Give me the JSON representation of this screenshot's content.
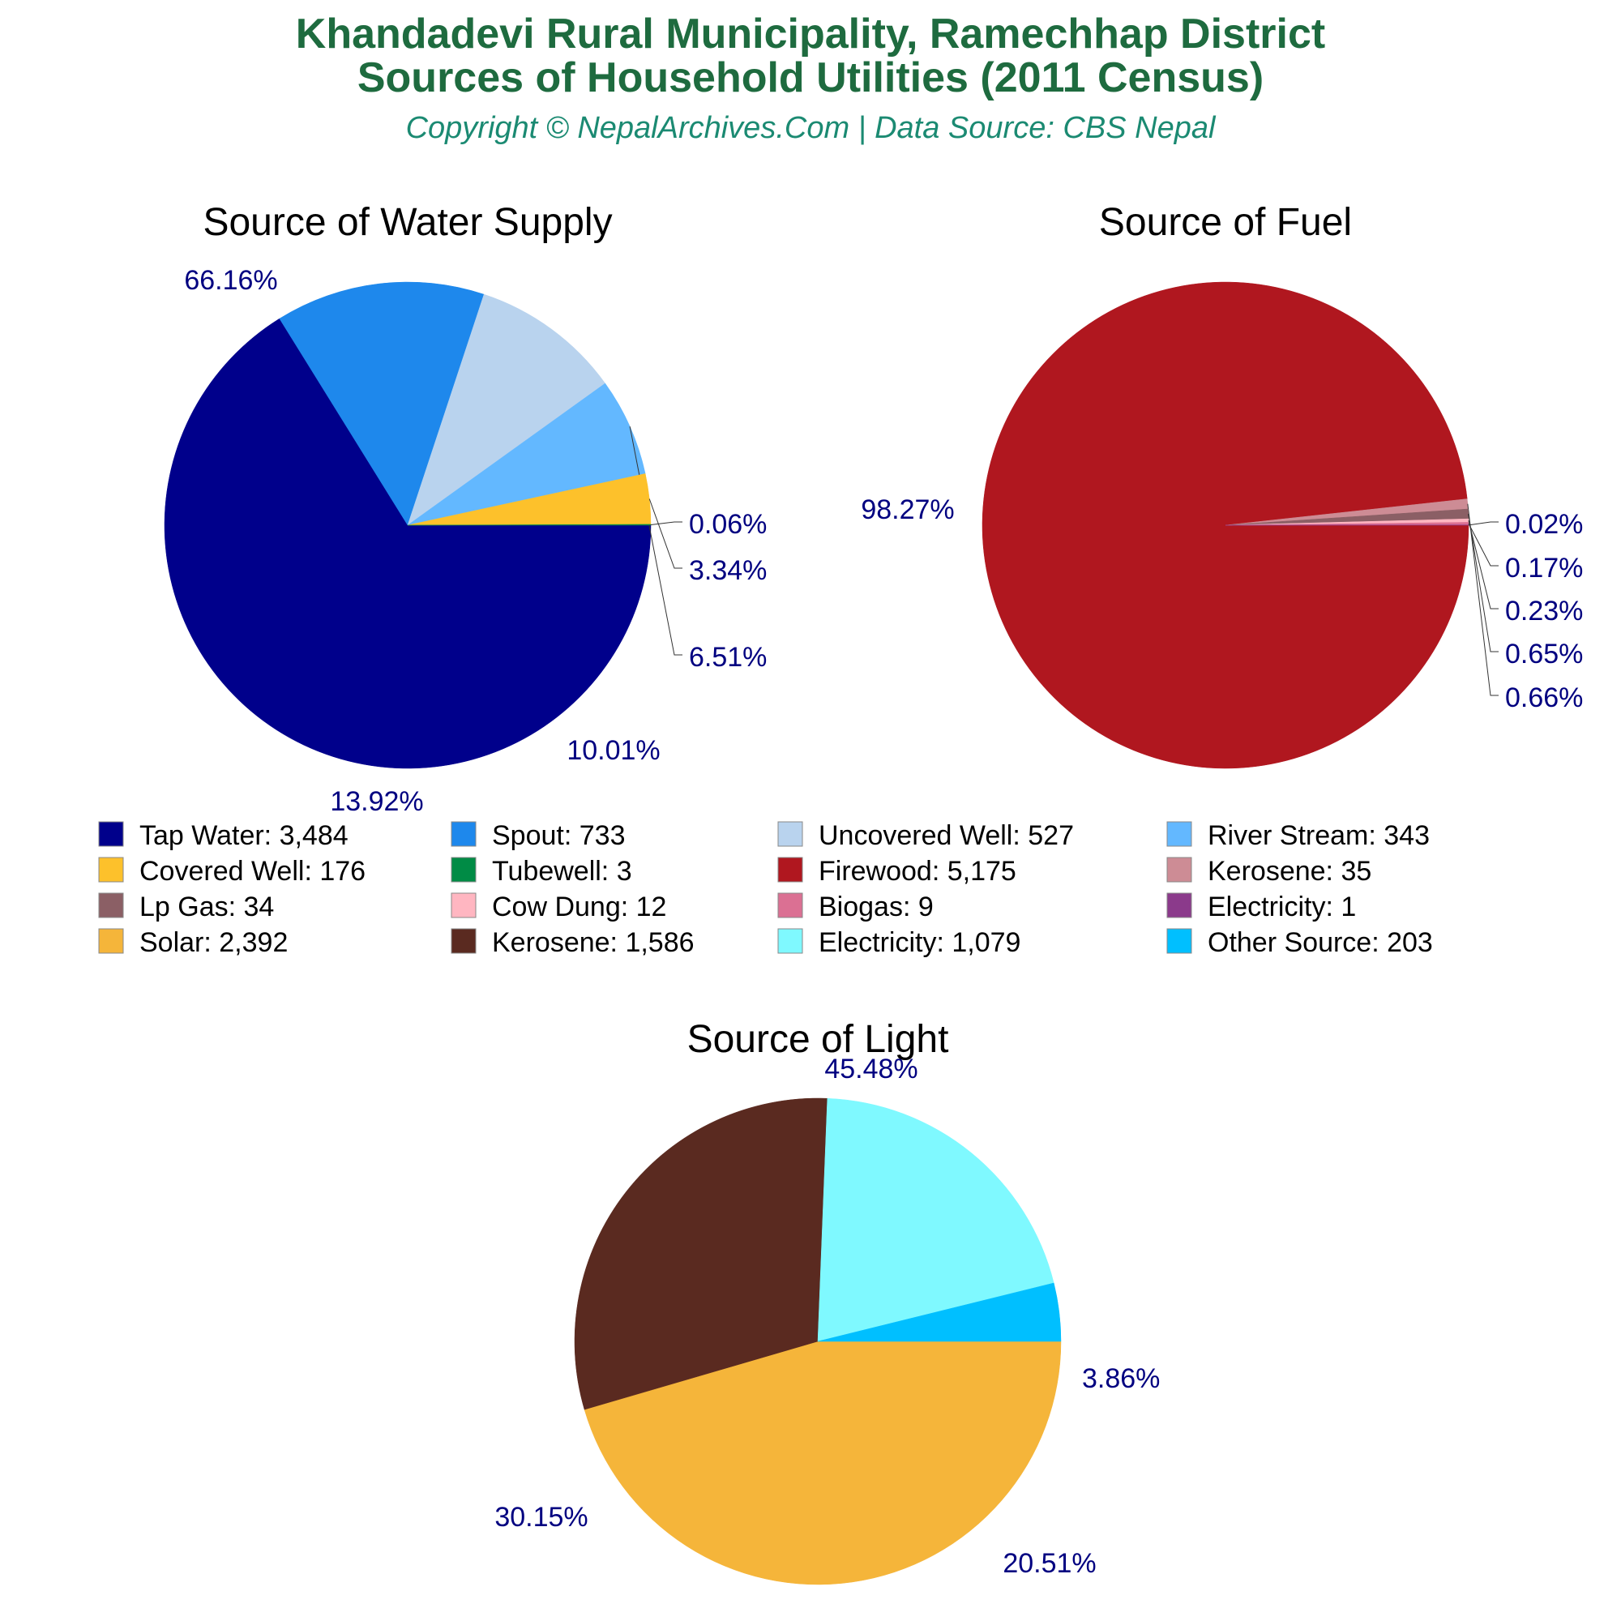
{
  "header": {
    "title_line1": "Khandadevi Rural Municipality, Ramechhap District",
    "title_line2": "Sources of Household Utilities (2011 Census)",
    "subtitle": "Copyright © NepalArchives.Com | Data Source: CBS Nepal"
  },
  "chart_data": [
    {
      "type": "pie",
      "title": "Source of Water Supply",
      "start_angle_deg": 0,
      "direction": "clockwise",
      "slices": [
        {
          "label": "Tap Water",
          "value": 3484,
          "percent": "66.16%",
          "color": "#00008b"
        },
        {
          "label": "Spout",
          "value": 733,
          "percent": "13.92%",
          "color": "#1e88ec"
        },
        {
          "label": "Uncovered Well",
          "value": 527,
          "percent": "10.01%",
          "color": "#b9d3ee"
        },
        {
          "label": "River Stream",
          "value": 343,
          "percent": "6.51%",
          "color": "#63b8ff"
        },
        {
          "label": "Covered Well",
          "value": 176,
          "percent": "3.34%",
          "color": "#fdc12b"
        },
        {
          "label": "Tubewell",
          "value": 3,
          "percent": "0.06%",
          "color": "#008b45"
        }
      ]
    },
    {
      "type": "pie",
      "title": "Source of Fuel",
      "start_angle_deg": 0,
      "direction": "clockwise",
      "slices": [
        {
          "label": "Firewood",
          "value": 5175,
          "percent": "98.27%",
          "color": "#b0171f"
        },
        {
          "label": "Kerosene",
          "value": 35,
          "percent": "0.66%",
          "color": "#cd8c95"
        },
        {
          "label": "Lp Gas",
          "value": 34,
          "percent": "0.65%",
          "color": "#8b5f65"
        },
        {
          "label": "Cow Dung",
          "value": 12,
          "percent": "0.23%",
          "color": "#ffb6c1"
        },
        {
          "label": "Biogas",
          "value": 9,
          "percent": "0.17%",
          "color": "#db7093"
        },
        {
          "label": "Electricity",
          "value": 1,
          "percent": "0.02%",
          "color": "#8b3a8b"
        }
      ]
    },
    {
      "type": "pie",
      "title": "Source of Light",
      "start_angle_deg": 0,
      "direction": "clockwise",
      "slices": [
        {
          "label": "Solar",
          "value": 2392,
          "percent": "45.48%",
          "color": "#f5b53a"
        },
        {
          "label": "Kerosene",
          "value": 1586,
          "percent": "30.15%",
          "color": "#5a2a20"
        },
        {
          "label": "Electricity",
          "value": 1079,
          "percent": "20.51%",
          "color": "#7ff9ff"
        },
        {
          "label": "Other Source",
          "value": 203,
          "percent": "3.86%",
          "color": "#00bfff"
        }
      ]
    }
  ],
  "legend": {
    "placement": "between-rows",
    "items": [
      {
        "text": "Tap Water: 3,484",
        "color": "#00008b"
      },
      {
        "text": "Spout: 733",
        "color": "#1e88ec"
      },
      {
        "text": "Uncovered Well: 527",
        "color": "#b9d3ee"
      },
      {
        "text": "River Stream: 343",
        "color": "#63b8ff"
      },
      {
        "text": "Covered Well: 176",
        "color": "#fdc12b"
      },
      {
        "text": "Tubewell: 3",
        "color": "#008b45"
      },
      {
        "text": "Firewood: 5,175",
        "color": "#b0171f"
      },
      {
        "text": "Kerosene: 35",
        "color": "#cd8c95"
      },
      {
        "text": "Lp Gas: 34",
        "color": "#8b5f65"
      },
      {
        "text": "Cow Dung: 12",
        "color": "#ffb6c1"
      },
      {
        "text": "Biogas: 9",
        "color": "#db7093"
      },
      {
        "text": "Electricity: 1",
        "color": "#8b3a8b"
      },
      {
        "text": "Solar: 2,392",
        "color": "#f5b53a"
      },
      {
        "text": "Kerosene: 1,586",
        "color": "#5a2a20"
      },
      {
        "text": "Electricity: 1,079",
        "color": "#7ff9ff"
      },
      {
        "text": "Other Source: 203",
        "color": "#00bfff"
      }
    ]
  },
  "colors": {
    "title": "#1e6b3f",
    "subtitle": "#1b8a72",
    "percent_label": "#000080"
  }
}
